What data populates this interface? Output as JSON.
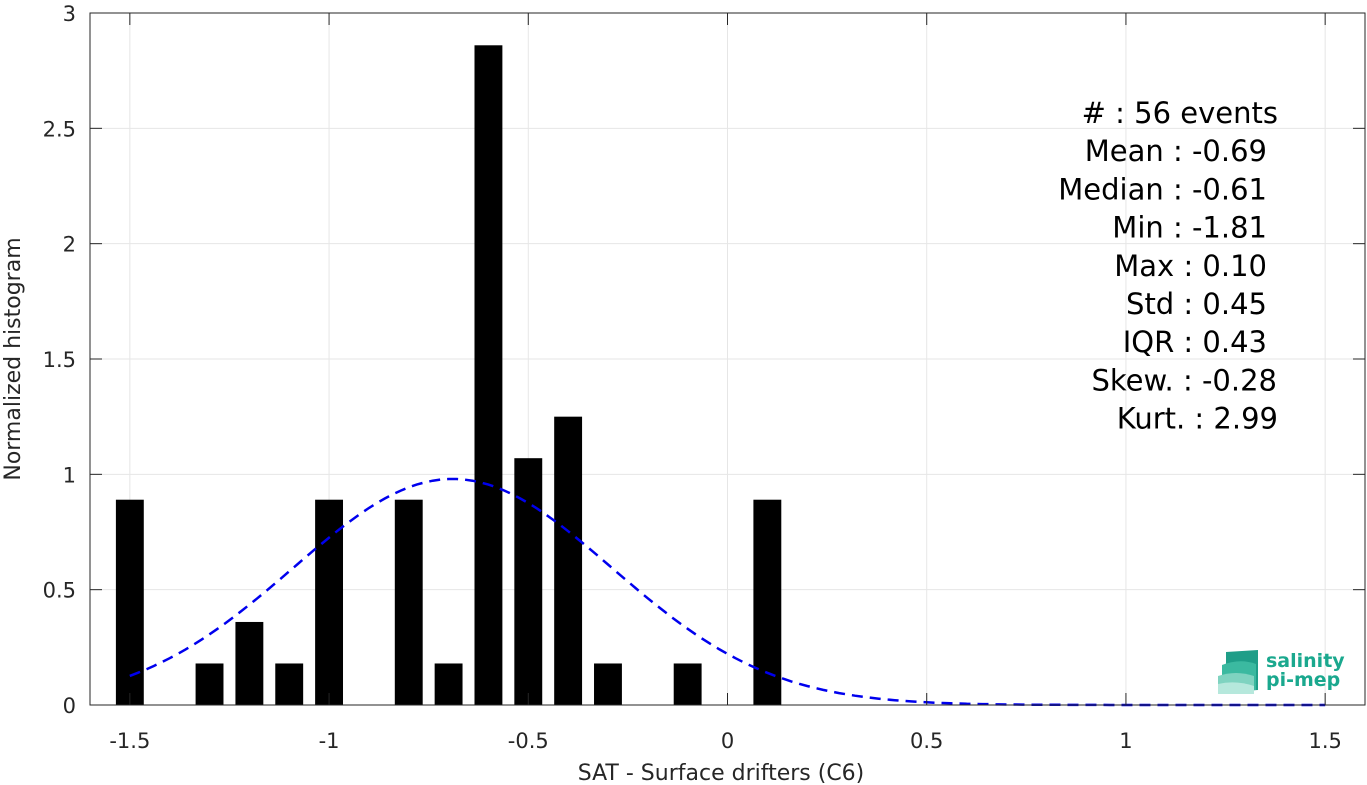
{
  "chart_data": {
    "type": "bar",
    "xlabel": "SAT - Surface drifters (C6)",
    "ylabel": "Normalized histogram",
    "xlim": [
      -1.6,
      1.6
    ],
    "ylim": [
      0,
      3
    ],
    "xticks": [
      -1.5,
      -1,
      -0.5,
      0,
      0.5,
      1,
      1.5
    ],
    "xtick_labels": [
      "-1.5",
      "-1",
      "-0.5",
      "0",
      "0.5",
      "1",
      "1.5"
    ],
    "yticks": [
      0,
      0.5,
      1,
      1.5,
      2,
      2.5,
      3
    ],
    "ytick_labels": [
      "0",
      "0.5",
      "1",
      "1.5",
      "2",
      "2.5",
      "3"
    ],
    "grid": true,
    "bar_color": "#000000",
    "bar_width": 0.07,
    "bars": [
      {
        "x": -1.5,
        "y": 0.89
      },
      {
        "x": -1.3,
        "y": 0.18
      },
      {
        "x": -1.2,
        "y": 0.36
      },
      {
        "x": -1.1,
        "y": 0.18
      },
      {
        "x": -1.0,
        "y": 0.89
      },
      {
        "x": -0.8,
        "y": 0.89
      },
      {
        "x": -0.7,
        "y": 0.18
      },
      {
        "x": -0.6,
        "y": 2.86
      },
      {
        "x": -0.5,
        "y": 1.07
      },
      {
        "x": -0.4,
        "y": 1.25
      },
      {
        "x": -0.3,
        "y": 0.18
      },
      {
        "x": -0.1,
        "y": 0.18
      },
      {
        "x": 0.1,
        "y": 0.89
      }
    ],
    "fit_curve": {
      "type": "gaussian",
      "mean": -0.69,
      "std": 0.4,
      "peak": 0.98,
      "x_range": [
        -1.5,
        1.5
      ],
      "color": "#0000ee",
      "style": "dashed"
    },
    "stats_lines": [
      "#  : 56 events",
      "Mean : -0.69",
      "Median : -0.61",
      "Min : -1.81",
      "Max : 0.10",
      "Std : 0.45",
      "IQR : 0.43",
      "Skew. : -0.28",
      "Kurt. : 2.99"
    ]
  },
  "logo": {
    "line1": "salinity",
    "line2": "pi-mep",
    "color": "#1aa88e"
  }
}
